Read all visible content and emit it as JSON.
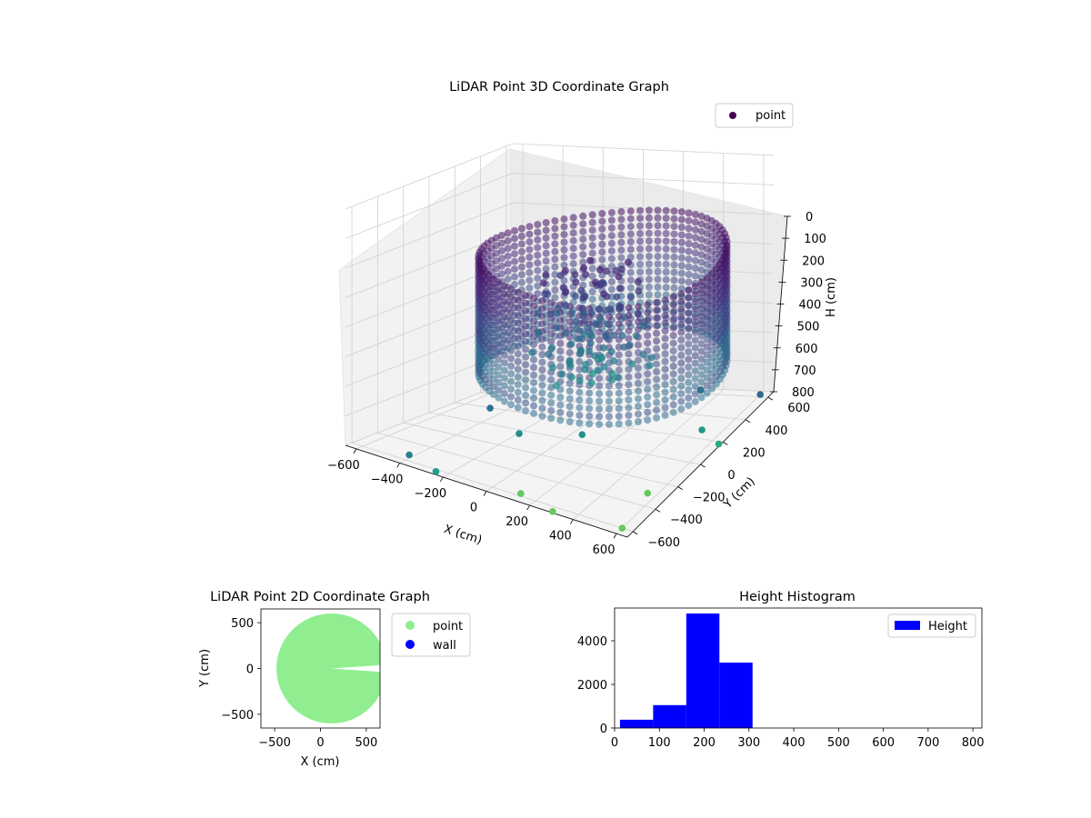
{
  "chart_data": [
    {
      "type": "scatter",
      "projection": "3d",
      "title": "LiDAR Point 3D Coordinate Graph",
      "xlabel": "X (cm)",
      "ylabel": "Y (cm)",
      "zlabel": "H (cm)",
      "xlim": [
        -650,
        650
      ],
      "ylim": [
        -650,
        650
      ],
      "zlim": [
        800,
        0
      ],
      "z_inverted": true,
      "x_ticks": [
        "−600",
        "−400",
        "−200",
        "0",
        "200",
        "400",
        "600"
      ],
      "y_ticks": [
        "−600",
        "−400",
        "−200",
        "0",
        "200",
        "400",
        "600"
      ],
      "z_ticks": [
        "0",
        "100",
        "200",
        "300",
        "400",
        "500",
        "600",
        "700",
        "800"
      ],
      "legend": {
        "placement": "upper-right",
        "entries": [
          "point"
        ]
      },
      "grid": true,
      "colormap": "viridis",
      "series": [
        {
          "name": "point",
          "marker_color": "#440154",
          "description_of_shape": "ring-shaped point cloud (room walls) plus a central cluster and scattered outliers",
          "ring_radius": 520,
          "ring_height_range": [
            200,
            600
          ],
          "outliers": [
            {
              "x": -430,
              "y": 120,
              "h": 780
            },
            {
              "x": -160,
              "y": -100,
              "h": 780
            },
            {
              "x": 60,
              "y": 40,
              "h": 790
            },
            {
              "x": -420,
              "y": -540,
              "h": 800
            },
            {
              "x": -250,
              "y": -620,
              "h": 800
            },
            {
              "x": 120,
              "y": -580,
              "h": 800
            },
            {
              "x": 300,
              "y": -640,
              "h": 800
            },
            {
              "x": 360,
              "y": 520,
              "h": 760
            },
            {
              "x": 520,
              "y": 250,
              "h": 790
            },
            {
              "x": 600,
              "y": 620,
              "h": 800
            },
            {
              "x": 640,
              "y": 180,
              "h": 800
            },
            {
              "x": 560,
              "y": -300,
              "h": 800
            },
            {
              "x": 600,
              "y": -600,
              "h": 800
            }
          ]
        }
      ]
    },
    {
      "type": "scatter",
      "title": "LiDAR Point 2D Coordinate Graph",
      "xlabel": "X (cm)",
      "ylabel": "Y (cm)",
      "xlim": [
        -650,
        650
      ],
      "ylim": [
        -650,
        650
      ],
      "x_ticks": [
        "−500",
        "0",
        "500"
      ],
      "y_ticks": [
        "500",
        "0",
        "−500"
      ],
      "legend": {
        "placement": "outside-right",
        "entries": [
          "point",
          "wall"
        ]
      },
      "series": [
        {
          "name": "point",
          "color": "#90ee90",
          "description_of_shape": "filled disc of radius ~600 with a thin wedge cut out to the right"
        },
        {
          "name": "wall",
          "color": "#0000ff"
        }
      ]
    },
    {
      "type": "bar",
      "subtype": "histogram",
      "title": "Height Histogram",
      "xlabel": "",
      "ylabel": "",
      "xlim": [
        0,
        820
      ],
      "ylim": [
        0,
        5500
      ],
      "x_ticks": [
        "0",
        "100",
        "200",
        "300",
        "400",
        "500",
        "600",
        "700",
        "800"
      ],
      "y_ticks": [
        "0",
        "2000",
        "4000"
      ],
      "legend": {
        "placement": "upper-right",
        "entries": [
          "Height"
        ]
      },
      "series": [
        {
          "name": "Height",
          "color": "#0000ff",
          "bins": [
            {
              "x0": 12,
              "x1": 86,
              "value": 380
            },
            {
              "x0": 86,
              "x1": 160,
              "value": 1050
            },
            {
              "x0": 160,
              "x1": 234,
              "value": 5250
            },
            {
              "x0": 234,
              "x1": 308,
              "value": 3000
            }
          ]
        }
      ]
    }
  ]
}
